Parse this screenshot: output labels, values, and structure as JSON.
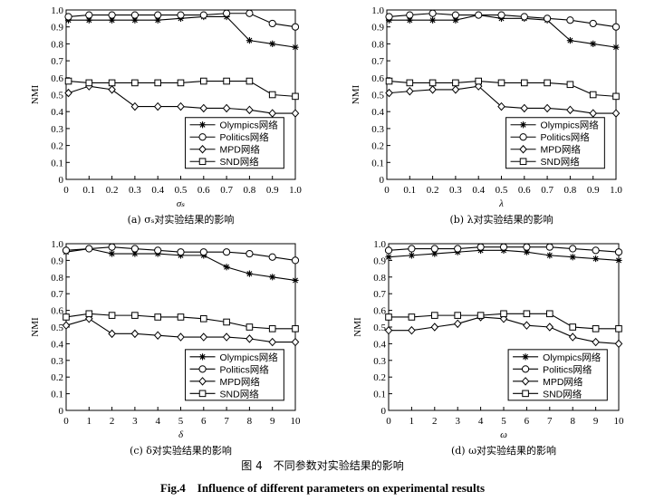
{
  "figure": {
    "title_cn": "图 4　不同参数对实验结果的影响",
    "title_en": "Fig.4　Influence of different parameters on experimental results"
  },
  "chart_data": [
    {
      "type": "line",
      "panel": "a",
      "caption": "(a) σₛ对实验结果的影响",
      "xlabel": "σₛ",
      "ylabel": "NMI",
      "xlim": [
        0,
        1.0
      ],
      "ylim": [
        0,
        1.0
      ],
      "xticks": [
        "0",
        "0.1",
        "0.2",
        "0.3",
        "0.4",
        "0.5",
        "0.6",
        "0.7",
        "0.8",
        "0.9",
        "1.0"
      ],
      "yticks": [
        "0",
        "0.1",
        "0.2",
        "0.3",
        "0.4",
        "0.5",
        "0.6",
        "0.7",
        "0.8",
        "0.9",
        "1.0"
      ],
      "x": [
        0.01,
        0.1,
        0.2,
        0.3,
        0.4,
        0.5,
        0.6,
        0.7,
        0.8,
        0.9,
        1.0
      ],
      "legend_position": "lower-right",
      "series": [
        {
          "name": "Olympics网络",
          "marker": "star",
          "values": [
            0.94,
            0.94,
            0.94,
            0.94,
            0.94,
            0.95,
            0.96,
            0.96,
            0.82,
            0.8,
            0.78
          ]
        },
        {
          "name": "Politics网络",
          "marker": "circle",
          "values": [
            0.96,
            0.97,
            0.97,
            0.97,
            0.97,
            0.97,
            0.97,
            0.98,
            0.98,
            0.92,
            0.9
          ]
        },
        {
          "name": "MPD网络",
          "marker": "diamond",
          "values": [
            0.51,
            0.55,
            0.53,
            0.43,
            0.43,
            0.43,
            0.42,
            0.42,
            0.41,
            0.39,
            0.39
          ]
        },
        {
          "name": "SND网络",
          "marker": "square",
          "values": [
            0.58,
            0.57,
            0.57,
            0.57,
            0.57,
            0.57,
            0.58,
            0.58,
            0.58,
            0.5,
            0.49
          ]
        }
      ]
    },
    {
      "type": "line",
      "panel": "b",
      "caption": "(b) λ对实验结果的影响",
      "xlabel": "λ",
      "ylabel": "NMI",
      "xlim": [
        0,
        1.0
      ],
      "ylim": [
        0,
        1.0
      ],
      "xticks": [
        "0",
        "0.1",
        "0.2",
        "0.3",
        "0.4",
        "0.5",
        "0.6",
        "0.7",
        "0.8",
        "0.9",
        "1.0"
      ],
      "yticks": [
        "0",
        "0.1",
        "0.2",
        "0.3",
        "0.4",
        "0.5",
        "0.6",
        "0.7",
        "0.8",
        "0.9",
        "1.0"
      ],
      "x": [
        0.01,
        0.1,
        0.2,
        0.3,
        0.4,
        0.5,
        0.6,
        0.7,
        0.8,
        0.9,
        1.0
      ],
      "legend_position": "lower-right",
      "series": [
        {
          "name": "Olympics网络",
          "marker": "star",
          "values": [
            0.94,
            0.94,
            0.94,
            0.94,
            0.97,
            0.95,
            0.95,
            0.94,
            0.82,
            0.8,
            0.78
          ]
        },
        {
          "name": "Politics网络",
          "marker": "circle",
          "values": [
            0.96,
            0.97,
            0.98,
            0.97,
            0.97,
            0.97,
            0.96,
            0.95,
            0.94,
            0.92,
            0.9
          ]
        },
        {
          "name": "MPD网络",
          "marker": "diamond",
          "values": [
            0.51,
            0.52,
            0.53,
            0.53,
            0.55,
            0.43,
            0.42,
            0.42,
            0.41,
            0.39,
            0.39
          ]
        },
        {
          "name": "SND网络",
          "marker": "square",
          "values": [
            0.58,
            0.57,
            0.57,
            0.57,
            0.58,
            0.57,
            0.57,
            0.57,
            0.56,
            0.5,
            0.49
          ]
        }
      ]
    },
    {
      "type": "line",
      "panel": "c",
      "caption": "(c) δ对实验结果的影响",
      "xlabel": "δ",
      "ylabel": "NMI",
      "xlim": [
        0,
        10
      ],
      "ylim": [
        0,
        1.0
      ],
      "xticks": [
        "0",
        "1",
        "2",
        "3",
        "4",
        "5",
        "6",
        "7",
        "8",
        "9",
        "10"
      ],
      "yticks": [
        "0",
        "0.1",
        "0.2",
        "0.3",
        "0.4",
        "0.5",
        "0.6",
        "0.7",
        "0.8",
        "0.9",
        "1.0"
      ],
      "x": [
        0,
        1,
        2,
        3,
        4,
        5,
        6,
        7,
        8,
        9,
        10
      ],
      "legend_position": "lower-right",
      "series": [
        {
          "name": "Olympics网络",
          "marker": "star",
          "values": [
            0.95,
            0.97,
            0.94,
            0.94,
            0.94,
            0.93,
            0.93,
            0.86,
            0.82,
            0.8,
            0.78
          ]
        },
        {
          "name": "Politics网络",
          "marker": "circle",
          "values": [
            0.96,
            0.97,
            0.98,
            0.97,
            0.96,
            0.95,
            0.95,
            0.95,
            0.94,
            0.92,
            0.9
          ]
        },
        {
          "name": "MPD网络",
          "marker": "diamond",
          "values": [
            0.51,
            0.55,
            0.46,
            0.46,
            0.45,
            0.44,
            0.44,
            0.44,
            0.43,
            0.41,
            0.41
          ]
        },
        {
          "name": "SND网络",
          "marker": "square",
          "values": [
            0.56,
            0.58,
            0.57,
            0.57,
            0.56,
            0.56,
            0.55,
            0.53,
            0.5,
            0.49,
            0.49
          ]
        }
      ]
    },
    {
      "type": "line",
      "panel": "d",
      "caption": "(d) ω对实验结果的影响",
      "xlabel": "ω",
      "ylabel": "NMI",
      "xlim": [
        0,
        10
      ],
      "ylim": [
        0,
        1.0
      ],
      "xticks": [
        "0",
        "1",
        "2",
        "3",
        "4",
        "5",
        "6",
        "7",
        "8",
        "9",
        "10"
      ],
      "yticks": [
        "0",
        "0.1",
        "0.2",
        "0.3",
        "0.4",
        "0.5",
        "0.6",
        "0.7",
        "0.8",
        "0.9",
        "1.0"
      ],
      "x": [
        0,
        1,
        2,
        3,
        4,
        5,
        6,
        7,
        8,
        9,
        10
      ],
      "legend_position": "lower-right",
      "series": [
        {
          "name": "Olympics网络",
          "marker": "star",
          "values": [
            0.92,
            0.93,
            0.94,
            0.95,
            0.96,
            0.96,
            0.95,
            0.93,
            0.92,
            0.91,
            0.9
          ]
        },
        {
          "name": "Politics网络",
          "marker": "circle",
          "values": [
            0.96,
            0.97,
            0.97,
            0.97,
            0.98,
            0.98,
            0.98,
            0.98,
            0.97,
            0.96,
            0.95
          ]
        },
        {
          "name": "MPD网络",
          "marker": "diamond",
          "values": [
            0.48,
            0.48,
            0.5,
            0.52,
            0.56,
            0.55,
            0.51,
            0.5,
            0.44,
            0.41,
            0.4
          ]
        },
        {
          "name": "SND网络",
          "marker": "square",
          "values": [
            0.56,
            0.56,
            0.57,
            0.57,
            0.57,
            0.58,
            0.58,
            0.58,
            0.5,
            0.49,
            0.49
          ]
        }
      ]
    }
  ]
}
